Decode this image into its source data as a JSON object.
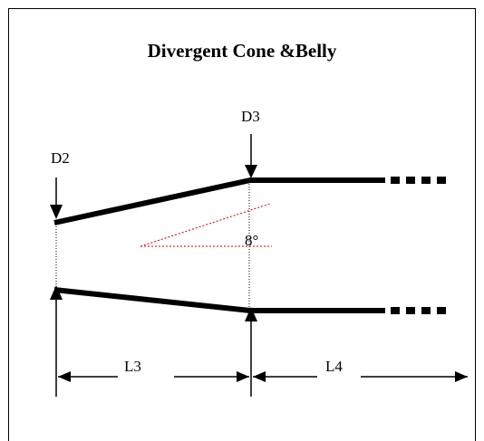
{
  "title": "Divergent Cone &Belly",
  "labels": {
    "d2": "D2",
    "d3": "D3",
    "l3": "L3",
    "l4": "L4",
    "angle": "8°"
  },
  "colors": {
    "line": "#000000",
    "angle_guide": "#e00000",
    "frame": "#000000"
  }
}
